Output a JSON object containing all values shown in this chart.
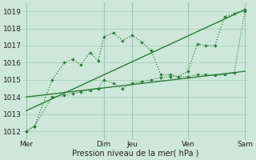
{
  "background_color": "#cde8d8",
  "grid_color": "#aacfbc",
  "line_color": "#2d7a3a",
  "xlabel": "Pression niveau de la mer( hPa )",
  "ylim": [
    1011.5,
    1019.5
  ],
  "yticks": [
    1012,
    1013,
    1014,
    1015,
    1016,
    1017,
    1018,
    1019
  ],
  "xlim": [
    0,
    8.3
  ],
  "xtick_positions": [
    0.15,
    3.0,
    4.05,
    6.1,
    8.2
  ],
  "xtick_labels": [
    "Mer",
    "Dim",
    "Jeu",
    "Ven",
    "Sam"
  ],
  "vline_positions": [
    0.15,
    3.0,
    4.05,
    6.1,
    8.2
  ],
  "line_upper_x": [
    0.15,
    0.45,
    1.1,
    1.55,
    1.85,
    2.15,
    2.5,
    2.8,
    3.0,
    3.35,
    3.7,
    4.05,
    4.4,
    4.75,
    5.1,
    5.45,
    5.75,
    6.1,
    6.45,
    6.75,
    7.1,
    7.45,
    7.8,
    8.2
  ],
  "line_upper_y": [
    1012.0,
    1012.3,
    1015.0,
    1016.0,
    1016.2,
    1015.9,
    1016.6,
    1016.1,
    1017.5,
    1017.75,
    1017.3,
    1017.6,
    1017.2,
    1016.7,
    1015.3,
    1015.3,
    1015.2,
    1015.5,
    1017.1,
    1017.0,
    1017.0,
    1018.7,
    1018.85,
    1019.1
  ],
  "line_lower_x": [
    0.15,
    0.45,
    1.1,
    1.55,
    1.85,
    2.15,
    2.5,
    2.8,
    3.0,
    3.35,
    3.7,
    4.05,
    4.4,
    4.75,
    5.1,
    5.45,
    5.75,
    6.1,
    6.45,
    6.75,
    7.1,
    7.45,
    7.8,
    8.2
  ],
  "line_lower_y": [
    1012.0,
    1012.3,
    1014.0,
    1014.1,
    1014.2,
    1014.3,
    1014.4,
    1014.5,
    1015.0,
    1014.8,
    1014.5,
    1014.8,
    1014.9,
    1015.0,
    1015.15,
    1015.2,
    1015.2,
    1015.2,
    1015.3,
    1015.3,
    1015.25,
    1015.3,
    1015.4,
    1019.0
  ],
  "trend1_x": [
    0.15,
    8.2
  ],
  "trend1_y": [
    1013.2,
    1019.1
  ],
  "trend2_x": [
    0.15,
    8.2
  ],
  "trend2_y": [
    1014.0,
    1015.5
  ]
}
